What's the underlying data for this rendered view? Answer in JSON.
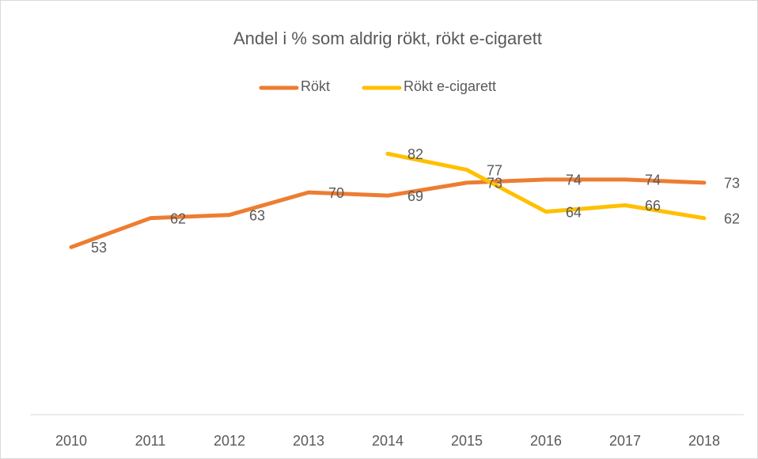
{
  "chart_data": {
    "type": "line",
    "title": "Andel i % som aldrig rökt, rökt e-cigarett",
    "categories": [
      "2010",
      "2011",
      "2012",
      "2013",
      "2014",
      "2015",
      "2016",
      "2017",
      "2018"
    ],
    "series": [
      {
        "name": "Rökt",
        "color": "#ed7d31",
        "values": [
          53,
          62,
          63,
          70,
          69,
          73,
          74,
          74,
          73
        ]
      },
      {
        "name": "Rökt e-cigarett",
        "color": "#ffc000",
        "values": [
          null,
          null,
          null,
          null,
          82,
          77,
          64,
          66,
          62
        ]
      }
    ],
    "ylim": [
      0,
      100
    ],
    "legend": "top"
  }
}
